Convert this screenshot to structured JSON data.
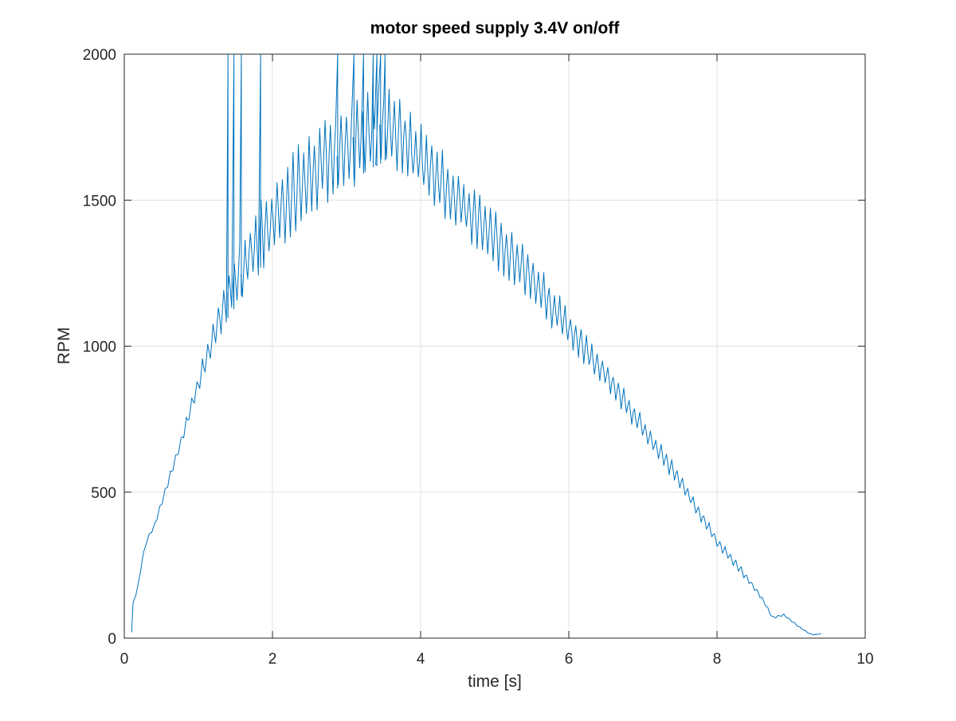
{
  "chart_data": {
    "type": "line",
    "title": "motor speed supply 3.4V on/off",
    "xlabel": "time [s]",
    "ylabel": "RPM",
    "xlim": [
      0,
      10
    ],
    "ylim": [
      0,
      2000
    ],
    "xticks": [
      "0",
      "2",
      "4",
      "6",
      "8",
      "10"
    ],
    "yticks": [
      "0",
      "500",
      "1000",
      "1500",
      "2000"
    ],
    "xtick_values": [
      0,
      2,
      4,
      6,
      8,
      10
    ],
    "ytick_values": [
      0,
      500,
      1000,
      1500,
      2000
    ],
    "grid": true,
    "legend": false,
    "series": [
      {
        "color": "#0072BD",
        "envelope": [
          [
            0.1,
            20
          ],
          [
            0.12,
            130
          ],
          [
            0.15,
            140
          ],
          [
            0.2,
            200
          ],
          [
            0.25,
            280
          ],
          [
            0.3,
            330
          ],
          [
            0.35,
            360
          ],
          [
            0.4,
            380
          ],
          [
            0.5,
            460
          ],
          [
            0.6,
            540
          ],
          [
            0.7,
            620
          ],
          [
            0.8,
            700
          ],
          [
            0.9,
            790
          ],
          [
            1.0,
            870
          ],
          [
            1.1,
            950
          ],
          [
            1.2,
            1030
          ],
          [
            1.3,
            1100
          ],
          [
            1.4,
            1170
          ],
          [
            1.5,
            1220
          ],
          [
            1.6,
            1270
          ],
          [
            1.7,
            1310
          ],
          [
            1.8,
            1360
          ],
          [
            1.9,
            1400
          ],
          [
            2.0,
            1430
          ],
          [
            2.2,
            1500
          ],
          [
            2.4,
            1560
          ],
          [
            2.6,
            1610
          ],
          [
            2.8,
            1650
          ],
          [
            3.0,
            1680
          ],
          [
            3.2,
            1710
          ],
          [
            3.4,
            1740
          ],
          [
            3.55,
            1760
          ],
          [
            3.7,
            1720
          ],
          [
            3.9,
            1670
          ],
          [
            4.0,
            1640
          ],
          [
            4.5,
            1500
          ],
          [
            5.0,
            1370
          ],
          [
            5.5,
            1230
          ],
          [
            6.0,
            1060
          ],
          [
            6.5,
            900
          ],
          [
            7.0,
            720
          ],
          [
            7.5,
            540
          ],
          [
            8.0,
            330
          ],
          [
            8.3,
            240
          ],
          [
            8.6,
            140
          ],
          [
            8.75,
            70
          ],
          [
            8.9,
            80
          ],
          [
            9.0,
            60
          ],
          [
            9.1,
            40
          ],
          [
            9.25,
            15
          ],
          [
            9.3,
            12
          ],
          [
            9.42,
            15
          ]
        ],
        "oscillation": [
          [
            0.1,
            0
          ],
          [
            0.8,
            20
          ],
          [
            1.2,
            60
          ],
          [
            1.5,
            100
          ],
          [
            2.0,
            140
          ],
          [
            2.5,
            150
          ],
          [
            3.0,
            150
          ],
          [
            3.5,
            150
          ],
          [
            3.8,
            130
          ],
          [
            4.5,
            110
          ],
          [
            5.5,
            90
          ],
          [
            6.5,
            50
          ],
          [
            7.5,
            30
          ],
          [
            8.3,
            15
          ],
          [
            8.7,
            5
          ],
          [
            9.5,
            0
          ]
        ],
        "spikes_to_top": [
          1.4,
          1.48,
          1.58,
          1.84,
          2.88,
          3.1,
          3.23,
          3.36,
          3.41,
          3.46,
          3.52
        ]
      }
    ]
  }
}
